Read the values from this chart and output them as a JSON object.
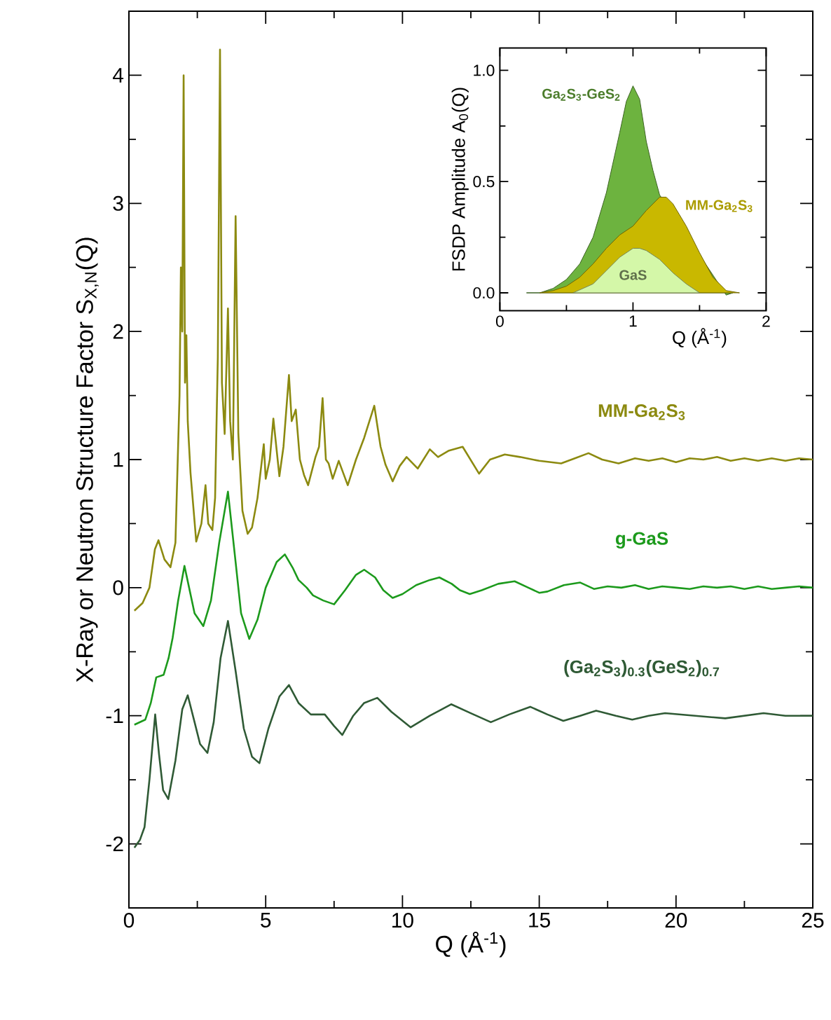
{
  "chart_data": [
    {
      "type": "line",
      "xlabel": "Q (Å$^{-1}$)",
      "ylabel": "X-Ray or Neutron Structure Factor S$_{X,N}$(Q)",
      "xlim": [
        0,
        25
      ],
      "ylim": [
        -2.5,
        4.5
      ],
      "xticks": [
        0,
        {
          "value": 2.5,
          "label": null
        },
        5,
        {
          "value": 7.5,
          "label": null
        },
        10,
        {
          "value": 12.5,
          "label": null
        },
        15,
        {
          "value": 17.5,
          "label": null
        },
        20,
        {
          "value": 22.5,
          "label": null
        },
        25
      ],
      "yticks": [
        -2,
        {
          "value": -1.5,
          "label": null
        },
        -1,
        {
          "value": -0.5,
          "label": null
        },
        0,
        {
          "value": 0.5,
          "label": null
        },
        1,
        {
          "value": 1.5,
          "label": null
        },
        2,
        {
          "value": 2.5,
          "label": null
        },
        3,
        {
          "value": 3.5,
          "label": null
        },
        4
      ],
      "marker": "none",
      "line_style": "solid",
      "series": [
        {
          "name": "MM-Ga$_{2}$S$_{3}$",
          "color": "#8c8a10",
          "x": [
            0.2,
            0.5,
            0.75,
            0.95,
            1.08,
            1.3,
            1.52,
            1.7,
            1.85,
            1.9,
            1.95,
            2.0,
            2.05,
            2.1,
            2.15,
            2.25,
            2.46,
            2.65,
            2.8,
            2.9,
            3.05,
            3.15,
            3.25,
            3.33,
            3.4,
            3.5,
            3.62,
            3.7,
            3.8,
            3.9,
            4.0,
            4.15,
            4.34,
            4.5,
            4.7,
            4.93,
            5.0,
            5.15,
            5.28,
            5.5,
            5.65,
            5.85,
            5.95,
            6.1,
            6.25,
            6.4,
            6.55,
            6.82,
            6.95,
            7.08,
            7.2,
            7.3,
            7.45,
            7.67,
            8.0,
            8.3,
            8.6,
            8.97,
            9.2,
            9.38,
            9.64,
            9.9,
            10.15,
            10.56,
            11.0,
            11.3,
            11.7,
            12.2,
            12.8,
            13.2,
            13.74,
            14.3,
            15.0,
            15.8,
            16.3,
            16.8,
            17.3,
            17.9,
            18.5,
            19.0,
            19.5,
            20.0,
            20.5,
            21.0,
            21.5,
            22.0,
            22.5,
            23.0,
            23.5,
            24.0,
            24.5,
            25.0
          ],
          "values": [
            -0.18,
            -0.12,
            0.0,
            0.3,
            0.37,
            0.22,
            0.16,
            0.35,
            1.5,
            2.5,
            2.0,
            4.0,
            1.6,
            1.97,
            1.3,
            0.9,
            0.36,
            0.5,
            0.8,
            0.5,
            0.45,
            0.7,
            1.8,
            4.2,
            1.6,
            1.2,
            2.18,
            1.3,
            1.0,
            2.9,
            1.2,
            0.6,
            0.42,
            0.47,
            0.7,
            1.12,
            0.85,
            1.0,
            1.32,
            0.87,
            1.1,
            1.66,
            1.3,
            1.39,
            1.0,
            0.88,
            0.8,
            1.02,
            1.1,
            1.48,
            1.0,
            0.97,
            0.85,
            0.99,
            0.8,
            1.0,
            1.17,
            1.42,
            1.1,
            0.96,
            0.83,
            0.95,
            1.02,
            0.93,
            1.08,
            1.02,
            1.07,
            1.1,
            0.89,
            1.0,
            1.04,
            1.02,
            0.99,
            0.97,
            1.01,
            1.05,
            1.0,
            0.97,
            1.01,
            0.99,
            1.01,
            0.98,
            1.01,
            1.0,
            1.02,
            0.99,
            1.01,
            0.99,
            1.01,
            0.99,
            1.01,
            1.0
          ]
        },
        {
          "name": "g-GaS",
          "color": "#1c9a1c",
          "x": [
            0.2,
            0.6,
            0.8,
            1.0,
            1.27,
            1.45,
            1.6,
            1.8,
            2.03,
            2.2,
            2.4,
            2.72,
            3.0,
            3.3,
            3.62,
            3.9,
            4.1,
            4.4,
            4.7,
            5.0,
            5.4,
            5.7,
            6.0,
            6.2,
            6.5,
            6.73,
            7.1,
            7.5,
            7.9,
            8.3,
            8.6,
            9.0,
            9.3,
            9.64,
            10.0,
            10.5,
            11.0,
            11.35,
            11.8,
            12.1,
            12.46,
            12.9,
            13.5,
            14.1,
            14.6,
            15.0,
            15.3,
            15.9,
            16.5,
            17.0,
            17.5,
            18.0,
            18.5,
            19.0,
            19.5,
            20.0,
            20.5,
            21.0,
            21.5,
            22.0,
            22.5,
            23.0,
            23.5,
            24.0,
            24.5,
            25.0
          ],
          "values": [
            -1.07,
            -1.03,
            -0.9,
            -0.7,
            -0.68,
            -0.55,
            -0.39,
            -0.1,
            0.17,
            0.0,
            -0.2,
            -0.3,
            -0.1,
            0.35,
            0.75,
            0.2,
            -0.2,
            -0.4,
            -0.25,
            0.0,
            0.2,
            0.26,
            0.15,
            0.06,
            0.0,
            -0.06,
            -0.1,
            -0.13,
            -0.02,
            0.1,
            0.14,
            0.08,
            -0.02,
            -0.08,
            -0.05,
            0.02,
            0.06,
            0.08,
            0.03,
            -0.02,
            -0.05,
            -0.02,
            0.03,
            0.05,
            0.0,
            -0.04,
            -0.03,
            0.02,
            0.04,
            -0.01,
            0.01,
            0.0,
            0.02,
            -0.01,
            0.01,
            0.0,
            -0.01,
            0.01,
            0.0,
            0.01,
            -0.01,
            0.01,
            -0.01,
            0.0,
            0.01,
            0.0
          ]
        },
        {
          "name": "(Ga$_{2}$S$_{3}$)$_{0.3}$(GeS$_{2}$)$_{0.7}$",
          "color": "#2f5a35",
          "x": [
            0.2,
            0.4,
            0.57,
            0.75,
            0.96,
            1.1,
            1.25,
            1.44,
            1.7,
            1.95,
            2.15,
            2.4,
            2.6,
            2.87,
            3.1,
            3.35,
            3.62,
            3.9,
            4.2,
            4.5,
            4.77,
            5.1,
            5.5,
            5.85,
            6.2,
            6.65,
            7.16,
            7.5,
            7.8,
            8.2,
            8.6,
            9.08,
            9.6,
            10.3,
            11.0,
            11.78,
            12.5,
            13.23,
            13.9,
            14.67,
            15.3,
            15.88,
            16.5,
            17.08,
            17.8,
            18.4,
            19.0,
            19.6,
            20.7,
            21.8,
            22.5,
            23.2,
            24.0,
            25.0
          ],
          "values": [
            -2.03,
            -1.97,
            -1.87,
            -1.5,
            -0.99,
            -1.3,
            -1.58,
            -1.65,
            -1.35,
            -0.95,
            -0.84,
            -1.05,
            -1.22,
            -1.29,
            -1.05,
            -0.55,
            -0.26,
            -0.65,
            -1.1,
            -1.32,
            -1.37,
            -1.1,
            -0.85,
            -0.76,
            -0.9,
            -0.99,
            -0.99,
            -1.08,
            -1.15,
            -1.0,
            -0.9,
            -0.86,
            -0.97,
            -1.09,
            -1.0,
            -0.91,
            -0.98,
            -1.05,
            -0.99,
            -0.93,
            -0.99,
            -1.04,
            -1.0,
            -0.96,
            -1.0,
            -1.03,
            -1.0,
            -0.98,
            -1.0,
            -1.02,
            -1.0,
            -0.98,
            -1.0,
            -1.0
          ]
        }
      ]
    },
    {
      "type": "area",
      "xlabel": "Q (Å$^{-1}$)",
      "ylabel": "FSDP Amplitude A$_{0}$(Q)",
      "xlim": [
        0,
        2
      ],
      "ylim": [
        -0.08,
        1.1
      ],
      "xticks": [
        0,
        {
          "value": 0.5,
          "label": null
        },
        1,
        {
          "value": 1.5,
          "label": null
        },
        2
      ],
      "yticks": [
        {
          "value": 0,
          "label": "0.0"
        },
        {
          "value": 0.25,
          "label": null
        },
        {
          "value": 0.5,
          "label": "0.5"
        },
        {
          "value": 0.75,
          "label": null
        },
        {
          "value": 1.0,
          "label": "1.0"
        }
      ],
      "series": [
        {
          "name": "Ga$_{2}$S$_{3}$-GeS$_{2}$",
          "color": "#6db33f",
          "x": [
            0.2,
            0.3,
            0.4,
            0.5,
            0.6,
            0.7,
            0.8,
            0.9,
            0.95,
            1.0,
            1.05,
            1.1,
            1.15,
            1.2,
            1.3,
            1.4,
            1.5,
            1.6,
            1.7,
            1.75
          ],
          "values": [
            0,
            0,
            0.02,
            0.06,
            0.13,
            0.25,
            0.45,
            0.72,
            0.86,
            0.93,
            0.87,
            0.68,
            0.55,
            0.44,
            null,
            null,
            null,
            null,
            -0.01,
            0
          ]
        },
        {
          "name": "MM-Ga$_{2}$S$_{3}$",
          "color": "#c9b800",
          "x": [
            0.3,
            0.4,
            0.5,
            0.6,
            0.7,
            0.8,
            0.9,
            1.0,
            1.1,
            1.2,
            1.25,
            1.3,
            1.4,
            1.5,
            1.6,
            1.7,
            1.8
          ],
          "values": [
            0,
            0.01,
            0.03,
            0.07,
            0.13,
            0.2,
            0.26,
            0.3,
            0.37,
            0.43,
            0.43,
            0.4,
            0.3,
            0.18,
            0.07,
            0.01,
            0
          ]
        },
        {
          "name": "GaS",
          "color": "#d4f7a8",
          "x": [
            0.55,
            0.7,
            0.8,
            0.9,
            1.0,
            1.05,
            1.1,
            1.2,
            1.3,
            1.4,
            1.5
          ],
          "values": [
            0,
            0.04,
            0.1,
            0.16,
            0.2,
            0.2,
            0.19,
            0.15,
            0.09,
            0.04,
            0
          ]
        }
      ]
    }
  ]
}
